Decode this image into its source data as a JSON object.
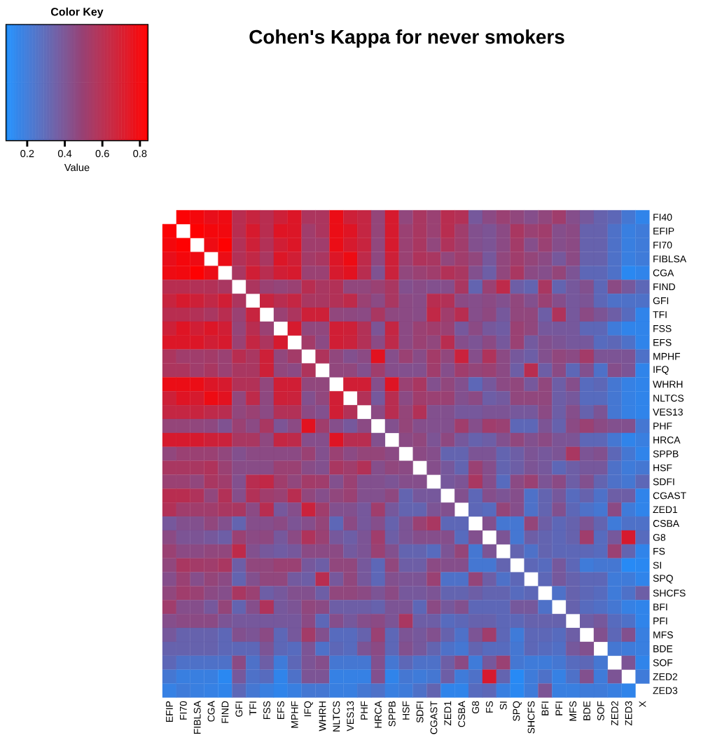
{
  "chart_data": {
    "type": "heatmap",
    "title": "Cohen's Kappa for never smokers",
    "legend_title": "Color Key",
    "clabel": "Value",
    "colors": [
      "#1e90ff",
      "#ff0000"
    ],
    "clim": [
      0.09,
      0.84
    ],
    "cticks": [
      0.2,
      0.4,
      0.6,
      0.8
    ],
    "categories": [
      "EFIP",
      "FI70",
      "FIBLSA",
      "CGA",
      "FIND",
      "GFI",
      "TFI",
      "FSS",
      "EFS",
      "MPHF",
      "IFQ",
      "WHRH",
      "NLTCS",
      "VES13",
      "PHF",
      "HRCA",
      "SPPB",
      "HSF",
      "SDFI",
      "CGAST",
      "ZED1",
      "CSBA",
      "G8",
      "FS",
      "SI",
      "SPQ",
      "SHCFS",
      "BFI",
      "PFI",
      "MFS",
      "BDE",
      "SOF",
      "ZED2",
      "ZED3",
      "X"
    ],
    "y_categories": [
      "FI40",
      "EFIP",
      "FI70",
      "FIBLSA",
      "CGA",
      "FIND",
      "GFI",
      "TFI",
      "FSS",
      "EFS",
      "MPHF",
      "IFQ",
      "WHRH",
      "NLTCS",
      "VES13",
      "PHF",
      "HRCA",
      "SPPB",
      "HSF",
      "SDFI",
      "CGAST",
      "ZED1",
      "CSBA",
      "G8",
      "FS",
      "SI",
      "SPQ",
      "SHCFS",
      "BFI",
      "PFI",
      "MFS",
      "BDE",
      "SOF",
      "ZED2",
      "ZED3"
    ],
    "cells": [
      [
        null,
        0.82,
        0.8,
        0.76,
        0.78,
        0.6,
        0.65,
        0.6,
        0.67,
        0.72,
        0.56,
        0.56,
        0.77,
        0.67,
        0.64,
        0.48,
        0.7,
        0.47,
        0.55,
        0.5,
        0.6,
        0.58,
        0.38,
        0.45,
        0.5,
        0.47,
        0.43,
        0.47,
        0.52,
        0.43,
        0.38,
        0.33,
        0.3,
        0.22,
        0.15
      ],
      [
        0.82,
        null,
        0.83,
        0.8,
        0.79,
        0.6,
        0.7,
        0.6,
        0.73,
        0.72,
        0.52,
        0.56,
        0.77,
        0.73,
        0.64,
        0.48,
        0.7,
        0.5,
        0.55,
        0.5,
        0.6,
        0.52,
        0.42,
        0.4,
        0.45,
        0.55,
        0.5,
        0.52,
        0.43,
        0.45,
        0.33,
        0.33,
        0.25,
        0.18,
        0.2
      ],
      [
        0.8,
        0.83,
        null,
        0.78,
        0.83,
        0.58,
        0.67,
        0.58,
        0.68,
        0.72,
        0.52,
        0.52,
        0.77,
        0.7,
        0.65,
        0.47,
        0.7,
        0.5,
        0.55,
        0.47,
        0.57,
        0.52,
        0.42,
        0.4,
        0.45,
        0.53,
        0.43,
        0.5,
        0.43,
        0.45,
        0.33,
        0.33,
        0.25,
        0.18,
        0.2
      ],
      [
        0.76,
        0.8,
        0.78,
        null,
        0.77,
        0.58,
        0.63,
        0.55,
        0.72,
        0.68,
        0.53,
        0.55,
        0.72,
        0.78,
        0.62,
        0.46,
        0.67,
        0.5,
        0.57,
        0.55,
        0.47,
        0.52,
        0.47,
        0.38,
        0.47,
        0.52,
        0.48,
        0.45,
        0.38,
        0.45,
        0.33,
        0.33,
        0.25,
        0.18,
        0.2
      ],
      [
        0.78,
        0.79,
        0.83,
        0.77,
        null,
        0.55,
        0.68,
        0.6,
        0.68,
        0.7,
        0.5,
        0.5,
        0.7,
        0.74,
        0.6,
        0.41,
        0.66,
        0.47,
        0.5,
        0.52,
        0.58,
        0.55,
        0.42,
        0.35,
        0.47,
        0.55,
        0.45,
        0.43,
        0.48,
        0.4,
        0.3,
        0.3,
        0.25,
        0.13,
        0.15
      ],
      [
        0.6,
        0.6,
        0.58,
        0.58,
        0.55,
        null,
        0.56,
        0.5,
        0.48,
        0.5,
        0.6,
        0.55,
        0.58,
        0.47,
        0.47,
        0.5,
        0.55,
        0.42,
        0.44,
        0.42,
        0.43,
        0.55,
        0.32,
        0.5,
        0.62,
        0.35,
        0.32,
        0.55,
        0.32,
        0.38,
        0.42,
        0.3,
        0.45,
        0.38,
        0.3
      ],
      [
        0.65,
        0.7,
        0.67,
        0.63,
        0.68,
        0.56,
        null,
        0.65,
        0.6,
        0.64,
        0.55,
        0.55,
        0.58,
        0.62,
        0.5,
        0.45,
        0.55,
        0.45,
        0.44,
        0.6,
        0.58,
        0.45,
        0.43,
        0.45,
        0.42,
        0.47,
        0.42,
        0.5,
        0.43,
        0.38,
        0.4,
        0.3,
        0.25,
        0.25,
        0.25
      ],
      [
        0.6,
        0.6,
        0.58,
        0.55,
        0.6,
        0.5,
        0.65,
        null,
        0.5,
        0.56,
        0.67,
        0.67,
        0.47,
        0.46,
        0.45,
        0.55,
        0.46,
        0.45,
        0.44,
        0.63,
        0.52,
        0.6,
        0.43,
        0.46,
        0.38,
        0.47,
        0.47,
        0.35,
        0.57,
        0.38,
        0.45,
        0.4,
        0.35,
        0.28,
        0.15
      ],
      [
        0.67,
        0.73,
        0.68,
        0.72,
        0.68,
        0.48,
        0.6,
        0.5,
        null,
        0.7,
        0.47,
        0.47,
        0.68,
        0.67,
        0.58,
        0.4,
        0.64,
        0.45,
        0.5,
        0.52,
        0.5,
        0.38,
        0.45,
        0.38,
        0.36,
        0.5,
        0.47,
        0.38,
        0.38,
        0.38,
        0.3,
        0.3,
        0.2,
        0.15,
        0.15
      ],
      [
        0.72,
        0.72,
        0.72,
        0.68,
        0.7,
        0.5,
        0.64,
        0.56,
        0.7,
        null,
        0.53,
        0.45,
        0.68,
        0.66,
        0.58,
        0.45,
        0.62,
        0.45,
        0.5,
        0.47,
        0.6,
        0.43,
        0.4,
        0.45,
        0.38,
        0.5,
        0.37,
        0.42,
        0.4,
        0.38,
        0.38,
        0.28,
        0.3,
        0.25,
        0.15
      ],
      [
        0.56,
        0.52,
        0.52,
        0.53,
        0.5,
        0.6,
        0.55,
        0.67,
        0.47,
        0.53,
        null,
        0.57,
        0.47,
        0.42,
        0.45,
        0.74,
        0.43,
        0.5,
        0.44,
        0.53,
        0.47,
        0.66,
        0.43,
        0.57,
        0.45,
        0.38,
        0.35,
        0.42,
        0.47,
        0.45,
        0.53,
        0.4,
        0.4,
        0.4,
        0.25
      ],
      [
        0.56,
        0.56,
        0.52,
        0.55,
        0.5,
        0.55,
        0.55,
        0.67,
        0.47,
        0.45,
        0.57,
        null,
        0.47,
        0.47,
        0.42,
        0.52,
        0.43,
        0.42,
        0.42,
        0.52,
        0.43,
        0.52,
        0.48,
        0.5,
        0.45,
        0.35,
        0.6,
        0.35,
        0.45,
        0.3,
        0.42,
        0.25,
        0.43,
        0.4,
        0.15
      ],
      [
        0.77,
        0.77,
        0.77,
        0.72,
        0.7,
        0.58,
        0.58,
        0.47,
        0.68,
        0.68,
        0.47,
        0.47,
        null,
        0.68,
        0.68,
        0.43,
        0.73,
        0.5,
        0.55,
        0.42,
        0.47,
        0.42,
        0.3,
        0.38,
        0.45,
        0.47,
        0.38,
        0.47,
        0.35,
        0.43,
        0.28,
        0.3,
        0.22,
        0.17,
        0.15
      ],
      [
        0.67,
        0.73,
        0.7,
        0.78,
        0.74,
        0.47,
        0.62,
        0.46,
        0.67,
        0.66,
        0.42,
        0.47,
        0.68,
        null,
        0.58,
        0.38,
        0.6,
        0.45,
        0.52,
        0.5,
        0.5,
        0.42,
        0.45,
        0.35,
        0.37,
        0.47,
        0.47,
        0.47,
        0.35,
        0.38,
        0.28,
        0.28,
        0.22,
        0.17,
        0.15
      ],
      [
        0.64,
        0.64,
        0.65,
        0.62,
        0.6,
        0.47,
        0.5,
        0.45,
        0.58,
        0.58,
        0.45,
        0.42,
        0.68,
        0.58,
        null,
        0.45,
        0.6,
        0.48,
        0.58,
        0.42,
        0.42,
        0.38,
        0.38,
        0.4,
        0.4,
        0.38,
        0.38,
        0.45,
        0.35,
        0.43,
        0.33,
        0.4,
        0.22,
        0.17,
        0.15
      ],
      [
        0.48,
        0.48,
        0.47,
        0.46,
        0.41,
        0.5,
        0.45,
        0.55,
        0.4,
        0.45,
        0.74,
        0.52,
        0.43,
        0.38,
        0.45,
        null,
        0.42,
        0.48,
        0.43,
        0.42,
        0.42,
        0.52,
        0.43,
        0.52,
        0.5,
        0.3,
        0.3,
        0.4,
        0.33,
        0.45,
        0.5,
        0.45,
        0.42,
        0.42,
        0.22
      ],
      [
        0.7,
        0.7,
        0.7,
        0.67,
        0.66,
        0.55,
        0.55,
        0.46,
        0.64,
        0.62,
        0.43,
        0.43,
        0.73,
        0.6,
        0.6,
        0.42,
        null,
        0.45,
        0.47,
        0.4,
        0.46,
        0.38,
        0.33,
        0.35,
        0.42,
        0.47,
        0.42,
        0.45,
        0.4,
        0.4,
        0.3,
        0.3,
        0.22,
        0.15,
        0.18
      ],
      [
        0.47,
        0.5,
        0.5,
        0.5,
        0.47,
        0.42,
        0.45,
        0.45,
        0.45,
        0.45,
        0.5,
        0.42,
        0.5,
        0.45,
        0.48,
        0.48,
        0.45,
        null,
        0.45,
        0.43,
        0.32,
        0.32,
        0.4,
        0.4,
        0.32,
        0.35,
        0.4,
        0.38,
        0.4,
        0.55,
        0.4,
        0.42,
        0.3,
        0.22,
        0.15
      ],
      [
        0.55,
        0.55,
        0.55,
        0.57,
        0.5,
        0.44,
        0.44,
        0.44,
        0.5,
        0.5,
        0.44,
        0.42,
        0.55,
        0.52,
        0.58,
        0.43,
        0.47,
        0.45,
        null,
        0.43,
        0.38,
        0.32,
        0.5,
        0.43,
        0.32,
        0.35,
        0.4,
        0.38,
        0.3,
        0.35,
        0.38,
        0.38,
        0.25,
        0.2,
        0.22
      ],
      [
        0.5,
        0.5,
        0.47,
        0.55,
        0.52,
        0.42,
        0.6,
        0.63,
        0.52,
        0.47,
        0.53,
        0.52,
        0.42,
        0.5,
        0.42,
        0.42,
        0.4,
        0.43,
        0.43,
        null,
        0.38,
        0.4,
        0.55,
        0.43,
        0.28,
        0.45,
        0.5,
        0.4,
        0.45,
        0.35,
        0.42,
        0.32,
        0.25,
        0.22,
        0.3
      ],
      [
        0.6,
        0.6,
        0.57,
        0.47,
        0.58,
        0.43,
        0.58,
        0.52,
        0.5,
        0.6,
        0.47,
        0.43,
        0.47,
        0.5,
        0.42,
        0.42,
        0.46,
        0.32,
        0.38,
        0.38,
        null,
        0.42,
        0.3,
        0.43,
        0.4,
        0.43,
        0.25,
        0.32,
        0.38,
        0.28,
        0.33,
        0.25,
        0.35,
        0.35,
        0.15
      ],
      [
        0.58,
        0.52,
        0.52,
        0.52,
        0.55,
        0.55,
        0.45,
        0.6,
        0.38,
        0.43,
        0.66,
        0.52,
        0.42,
        0.42,
        0.38,
        0.52,
        0.38,
        0.32,
        0.32,
        0.4,
        0.42,
        null,
        0.3,
        0.28,
        0.48,
        0.43,
        0.25,
        0.32,
        0.42,
        0.3,
        0.25,
        0.22,
        0.45,
        0.2,
        0.15
      ],
      [
        0.38,
        0.42,
        0.42,
        0.47,
        0.42,
        0.32,
        0.43,
        0.43,
        0.45,
        0.4,
        0.43,
        0.48,
        0.3,
        0.45,
        0.38,
        0.43,
        0.33,
        0.4,
        0.5,
        0.55,
        0.3,
        0.3,
        null,
        0.42,
        0.22,
        0.22,
        0.48,
        0.35,
        0.3,
        0.33,
        0.4,
        0.32,
        0.2,
        0.25,
        0.25
      ],
      [
        0.45,
        0.4,
        0.4,
        0.38,
        0.35,
        0.5,
        0.45,
        0.46,
        0.38,
        0.45,
        0.57,
        0.5,
        0.38,
        0.35,
        0.4,
        0.52,
        0.35,
        0.4,
        0.43,
        0.43,
        0.43,
        0.28,
        0.42,
        null,
        0.4,
        0.22,
        0.35,
        0.32,
        0.3,
        0.33,
        0.52,
        0.28,
        0.38,
        0.7,
        0.28
      ],
      [
        0.5,
        0.45,
        0.45,
        0.47,
        0.47,
        0.62,
        0.42,
        0.38,
        0.36,
        0.38,
        0.45,
        0.45,
        0.45,
        0.37,
        0.4,
        0.5,
        0.42,
        0.32,
        0.32,
        0.28,
        0.4,
        0.48,
        0.22,
        0.4,
        null,
        0.32,
        0.25,
        0.32,
        0.3,
        0.3,
        0.3,
        0.28,
        0.5,
        0.32,
        0.15
      ],
      [
        0.47,
        0.55,
        0.53,
        0.52,
        0.55,
        0.35,
        0.47,
        0.47,
        0.5,
        0.5,
        0.38,
        0.35,
        0.47,
        0.47,
        0.38,
        0.3,
        0.47,
        0.35,
        0.35,
        0.45,
        0.43,
        0.43,
        0.22,
        0.22,
        0.32,
        null,
        0.3,
        0.28,
        0.38,
        0.3,
        0.2,
        0.22,
        0.22,
        0.12,
        0.13
      ],
      [
        0.43,
        0.5,
        0.43,
        0.48,
        0.45,
        0.32,
        0.42,
        0.47,
        0.47,
        0.37,
        0.35,
        0.6,
        0.38,
        0.47,
        0.38,
        0.3,
        0.42,
        0.4,
        0.4,
        0.5,
        0.25,
        0.25,
        0.48,
        0.35,
        0.25,
        0.3,
        null,
        0.3,
        0.38,
        0.33,
        0.3,
        0.3,
        0.2,
        0.2,
        0.15
      ],
      [
        0.47,
        0.52,
        0.5,
        0.45,
        0.43,
        0.55,
        0.5,
        0.35,
        0.38,
        0.42,
        0.42,
        0.35,
        0.47,
        0.47,
        0.45,
        0.4,
        0.45,
        0.38,
        0.38,
        0.4,
        0.32,
        0.32,
        0.35,
        0.32,
        0.32,
        0.28,
        0.3,
        null,
        0.25,
        0.33,
        0.3,
        0.28,
        0.2,
        0.25,
        0.35
      ],
      [
        0.52,
        0.43,
        0.43,
        0.38,
        0.48,
        0.32,
        0.43,
        0.57,
        0.38,
        0.4,
        0.47,
        0.45,
        0.35,
        0.35,
        0.35,
        0.33,
        0.4,
        0.4,
        0.3,
        0.45,
        0.38,
        0.42,
        0.3,
        0.3,
        0.3,
        0.38,
        0.38,
        0.25,
        null,
        0.33,
        0.28,
        0.26,
        0.22,
        0.17,
        0.15
      ],
      [
        0.43,
        0.45,
        0.45,
        0.45,
        0.4,
        0.38,
        0.38,
        0.38,
        0.38,
        0.38,
        0.45,
        0.3,
        0.43,
        0.38,
        0.43,
        0.45,
        0.4,
        0.55,
        0.35,
        0.35,
        0.28,
        0.3,
        0.33,
        0.33,
        0.3,
        0.3,
        0.33,
        0.33,
        0.33,
        null,
        0.35,
        0.38,
        0.28,
        0.25,
        0.15
      ],
      [
        0.38,
        0.33,
        0.33,
        0.33,
        0.3,
        0.42,
        0.4,
        0.45,
        0.3,
        0.38,
        0.53,
        0.42,
        0.28,
        0.28,
        0.33,
        0.5,
        0.3,
        0.4,
        0.38,
        0.42,
        0.33,
        0.25,
        0.4,
        0.52,
        0.3,
        0.2,
        0.3,
        0.3,
        0.28,
        0.35,
        null,
        0.42,
        0.3,
        0.42,
        0.18
      ],
      [
        0.33,
        0.33,
        0.33,
        0.33,
        0.3,
        0.3,
        0.3,
        0.4,
        0.3,
        0.28,
        0.4,
        0.25,
        0.3,
        0.28,
        0.4,
        0.45,
        0.3,
        0.42,
        0.38,
        0.32,
        0.25,
        0.22,
        0.32,
        0.28,
        0.28,
        0.22,
        0.3,
        0.28,
        0.26,
        0.38,
        0.42,
        null,
        0.22,
        0.2,
        0.18
      ],
      [
        0.3,
        0.25,
        0.25,
        0.25,
        0.25,
        0.45,
        0.25,
        0.35,
        0.2,
        0.3,
        0.4,
        0.43,
        0.22,
        0.22,
        0.22,
        0.42,
        0.22,
        0.3,
        0.25,
        0.25,
        0.35,
        0.45,
        0.2,
        0.38,
        0.5,
        0.22,
        0.2,
        0.2,
        0.22,
        0.28,
        0.3,
        0.22,
        null,
        0.4,
        0.15
      ],
      [
        0.22,
        0.18,
        0.18,
        0.18,
        0.13,
        0.38,
        0.25,
        0.28,
        0.15,
        0.25,
        0.4,
        0.4,
        0.17,
        0.17,
        0.17,
        0.42,
        0.15,
        0.22,
        0.2,
        0.22,
        0.35,
        0.2,
        0.25,
        0.7,
        0.32,
        0.12,
        0.2,
        0.25,
        0.17,
        0.25,
        0.42,
        0.2,
        0.4,
        null,
        0.2
      ],
      [
        0.17,
        0.2,
        0.18,
        0.17,
        0.15,
        0.3,
        0.22,
        0.18,
        0.15,
        0.18,
        0.22,
        0.22,
        0.18,
        0.18,
        0.22,
        0.25,
        0.18,
        0.2,
        0.25,
        0.32,
        0.15,
        0.15,
        0.28,
        0.3,
        0.18,
        0.13,
        0.2,
        0.4,
        0.18,
        0.18,
        0.2,
        0.2,
        0.18,
        0.15,
        null
      ]
    ]
  }
}
